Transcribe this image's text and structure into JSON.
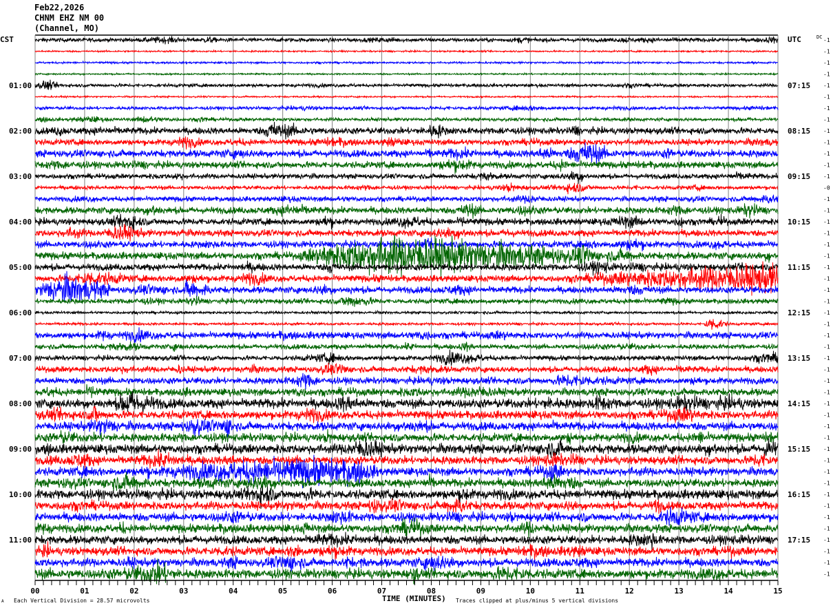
{
  "header": {
    "date": "Feb22,2026",
    "station": "CHNM EHZ NM 00",
    "location": "(Channel, MO)"
  },
  "left_timezone": "CST",
  "right_timezone": "UTC",
  "dc_label": "DC",
  "footer": {
    "scale_note": "Each Vertical Division =   28.57 microvolts",
    "xlabel": "TIME (MINUTES)",
    "clip_note": "Traces clipped at plus/minus 5 vertical divisions",
    "corner_mark": "A"
  },
  "colors": {
    "black": "#000000",
    "red": "#ff0000",
    "blue": "#0000ff",
    "green": "#006400",
    "grid": "#808080"
  },
  "chart_data": {
    "type": "line",
    "subtype": "helicorder",
    "xlabel": "TIME (MINUTES)",
    "xlim": [
      0,
      15
    ],
    "x_ticks": [
      "00",
      "01",
      "02",
      "03",
      "04",
      "05",
      "06",
      "07",
      "08",
      "09",
      "10",
      "11",
      "12",
      "13",
      "14",
      "15"
    ],
    "minor_tick_seconds": 10,
    "grid": "vertical every minute",
    "color_cycle": [
      "black",
      "red",
      "blue",
      "green"
    ],
    "left_hour_labels": [
      "01:00",
      "02:00",
      "03:00",
      "04:00",
      "05:00",
      "06:00",
      "07:00",
      "08:00",
      "09:00",
      "10:00",
      "11:00"
    ],
    "right_hour_labels": [
      "07:15",
      "08:15",
      "09:15",
      "10:15",
      "11:15",
      "12:15",
      "13:15",
      "14:15",
      "15:15",
      "16:15",
      "17:15"
    ],
    "dc_offsets": [
      "-1",
      "-1",
      "-1",
      "-1",
      "-1",
      "-1",
      "-1",
      "-1",
      "-1",
      "-1",
      "-1",
      "-1",
      "-1",
      "-0",
      "-1",
      "-1",
      "-1",
      "-1",
      "-1",
      "-1",
      "-1",
      "-1",
      "-1",
      "-1",
      "-1",
      "-1",
      "-1",
      "-1",
      "-1",
      "-1",
      "-1",
      "-1",
      "-1",
      "-1",
      "-1",
      "-1",
      "-1",
      "-1",
      "-1",
      "-1",
      "-1",
      "-1",
      "-1",
      "-1",
      "-1",
      "-1",
      "-1",
      "-1"
    ],
    "noise_level_divisions": [
      0.12,
      0.05,
      0.06,
      0.05,
      0.1,
      0.05,
      0.1,
      0.1,
      0.2,
      0.18,
      0.22,
      0.2,
      0.15,
      0.12,
      0.15,
      0.2,
      0.2,
      0.2,
      0.2,
      0.22,
      0.2,
      0.2,
      0.2,
      0.15,
      0.08,
      0.08,
      0.2,
      0.15,
      0.15,
      0.18,
      0.2,
      0.22,
      0.28,
      0.25,
      0.25,
      0.25,
      0.28,
      0.25,
      0.25,
      0.25,
      0.28,
      0.25,
      0.25,
      0.25,
      0.25,
      0.25,
      0.25,
      0.28
    ],
    "events": [
      {
        "row": 19,
        "start_min": 5.3,
        "peak_min": 7.3,
        "end_min": 11.2,
        "amplitude_divisions": 1.0
      },
      {
        "row": 21,
        "start_min": 11.0,
        "peak_min": 15.0,
        "end_min": 15.0,
        "amplitude_divisions": 0.7
      },
      {
        "row": 22,
        "start_min": 0.0,
        "peak_min": 0.6,
        "end_min": 1.6,
        "amplitude_divisions": 0.7
      },
      {
        "row": 22,
        "start_min": 3.0,
        "peak_min": 3.1,
        "end_min": 3.3,
        "amplitude_divisions": 0.5
      },
      {
        "row": 25,
        "start_min": 13.5,
        "peak_min": 13.65,
        "end_min": 14.0,
        "amplitude_divisions": 0.35
      },
      {
        "row": 38,
        "start_min": 2.4,
        "peak_min": 5.7,
        "end_min": 7.0,
        "amplitude_divisions": 0.6
      }
    ]
  }
}
